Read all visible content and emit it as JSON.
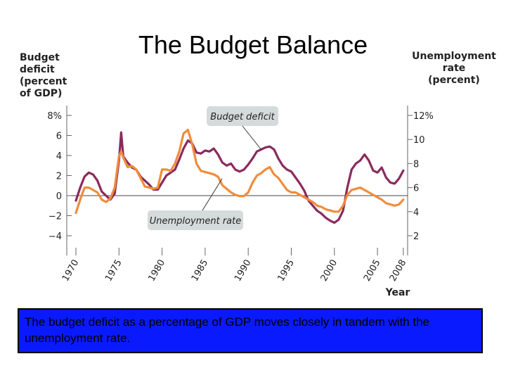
{
  "slide": {
    "title": "The Budget Balance",
    "caption": "The budget deficit as a percentage of GDP moves closely in tandem with the unemployment rate."
  },
  "chart_data": {
    "type": "line",
    "title": "",
    "xlabel": "Year",
    "ylabel_left": [
      "Budget",
      "deficit",
      "(percent",
      "of GDP)"
    ],
    "ylabel_right": [
      "Unemployment",
      "rate",
      "(percent)"
    ],
    "xlim": [
      1970,
      2008.5
    ],
    "ylim_left": [
      -4,
      8
    ],
    "ylim_right": [
      2,
      12
    ],
    "x_ticks": [
      1970,
      1975,
      1980,
      1985,
      1990,
      1995,
      2000,
      2005,
      2008
    ],
    "left_ticks": [
      {
        "value": 8,
        "label": "8%"
      },
      {
        "value": 6,
        "label": "6"
      },
      {
        "value": 4,
        "label": "4"
      },
      {
        "value": 2,
        "label": "2"
      },
      {
        "value": 0,
        "label": "0"
      },
      {
        "value": -2,
        "label": "−2"
      },
      {
        "value": -4,
        "label": "−4"
      }
    ],
    "right_ticks": [
      {
        "value": 12,
        "label": "12%"
      },
      {
        "value": 10,
        "label": "10"
      },
      {
        "value": 8,
        "label": "8"
      },
      {
        "value": 6,
        "label": "6"
      },
      {
        "value": 4,
        "label": "4"
      },
      {
        "value": 2,
        "label": "2"
      }
    ],
    "zero_line": 0,
    "grid": false,
    "annotations": [
      {
        "text": "Budget deficit",
        "series": "deficit"
      },
      {
        "text": "Unemployment rate",
        "series": "unemployment"
      }
    ],
    "series": [
      {
        "id": "deficit",
        "axis": "left",
        "color": "#8b2a5c",
        "x": [
          1970,
          1970.5,
          1971,
          1971.5,
          1972,
          1972.5,
          1973,
          1973.5,
          1974,
          1974.5,
          1975,
          1975.25,
          1975.5,
          1976,
          1976.5,
          1977,
          1977.5,
          1978,
          1978.5,
          1979,
          1979.5,
          1980,
          1980.5,
          1981,
          1981.5,
          1982,
          1982.5,
          1983,
          1983.5,
          1984,
          1984.5,
          1985,
          1985.5,
          1986,
          1986.5,
          1987,
          1987.5,
          1988,
          1988.5,
          1989,
          1989.5,
          1990,
          1990.5,
          1991,
          1991.5,
          1992,
          1992.5,
          1993,
          1993.5,
          1994,
          1994.5,
          1995,
          1995.5,
          1996,
          1996.5,
          1997,
          1997.5,
          1998,
          1998.5,
          1999,
          1999.5,
          2000,
          2000.5,
          2001,
          2001.5,
          2002,
          2002.5,
          2003,
          2003.5,
          2004,
          2004.5,
          2005,
          2005.5,
          2006,
          2006.5,
          2007,
          2007.5,
          2008
        ],
        "values": [
          -0.5,
          0.8,
          1.9,
          2.3,
          2.1,
          1.5,
          0.4,
          0,
          -0.4,
          0.2,
          3.5,
          6.3,
          3.9,
          3.3,
          2.8,
          2.6,
          1.9,
          1.5,
          1.1,
          0.6,
          0.6,
          1.3,
          2.0,
          2.3,
          2.6,
          3.6,
          4.7,
          5.5,
          5.2,
          4.3,
          4.2,
          4.5,
          4.4,
          4.7,
          4.1,
          3.3,
          3.0,
          3.2,
          2.6,
          2.4,
          2.6,
          3.1,
          3.7,
          4.4,
          4.6,
          4.8,
          4.9,
          4.6,
          3.7,
          3.0,
          2.6,
          2.4,
          1.8,
          1.2,
          0.5,
          -0.5,
          -1.0,
          -1.5,
          -1.8,
          -2.2,
          -2.5,
          -2.7,
          -2.4,
          -1.5,
          0.8,
          2.6,
          3.2,
          3.5,
          4.1,
          3.5,
          2.5,
          2.3,
          2.8,
          1.8,
          1.3,
          1.2,
          1.7,
          2.5
        ]
      },
      {
        "id": "unemployment",
        "axis": "right",
        "color": "#f08c3c",
        "x": [
          1970,
          1970.5,
          1971,
          1971.5,
          1972,
          1972.5,
          1973,
          1973.5,
          1974,
          1974.5,
          1975,
          1975.25,
          1975.5,
          1976,
          1976.5,
          1977,
          1977.5,
          1978,
          1978.5,
          1979,
          1979.5,
          1980,
          1980.5,
          1981,
          1981.5,
          1982,
          1982.5,
          1983,
          1983.5,
          1984,
          1984.5,
          1985,
          1985.5,
          1986,
          1986.5,
          1987,
          1987.5,
          1988,
          1988.5,
          1989,
          1989.5,
          1990,
          1990.5,
          1991,
          1991.5,
          1992,
          1992.5,
          1993,
          1993.5,
          1994,
          1994.5,
          1995,
          1995.5,
          1996,
          1996.5,
          1997,
          1997.5,
          1998,
          1998.5,
          1999,
          1999.5,
          2000,
          2000.5,
          2001,
          2001.5,
          2002,
          2002.5,
          2003,
          2003.5,
          2004,
          2004.5,
          2005,
          2005.5,
          2006,
          2006.5,
          2007,
          2007.5,
          2008
        ],
        "values": [
          3.9,
          5.0,
          6.0,
          6.0,
          5.8,
          5.6,
          5.0,
          4.8,
          5.1,
          6.0,
          8.6,
          9.0,
          8.5,
          7.7,
          7.8,
          7.5,
          6.8,
          6.1,
          6.0,
          5.9,
          6.0,
          7.5,
          7.5,
          7.4,
          8.0,
          9.0,
          10.5,
          10.8,
          9.6,
          8.0,
          7.4,
          7.3,
          7.2,
          7.1,
          6.9,
          6.2,
          5.9,
          5.6,
          5.4,
          5.3,
          5.3,
          5.6,
          6.4,
          7.0,
          7.2,
          7.5,
          7.7,
          7.1,
          6.8,
          6.3,
          5.8,
          5.6,
          5.6,
          5.4,
          5.2,
          5.0,
          4.8,
          4.5,
          4.4,
          4.2,
          4.1,
          4.0,
          4.0,
          4.5,
          5.4,
          5.8,
          5.9,
          6.0,
          5.8,
          5.6,
          5.4,
          5.2,
          5.0,
          4.7,
          4.6,
          4.5,
          4.6,
          5.0
        ]
      }
    ]
  }
}
